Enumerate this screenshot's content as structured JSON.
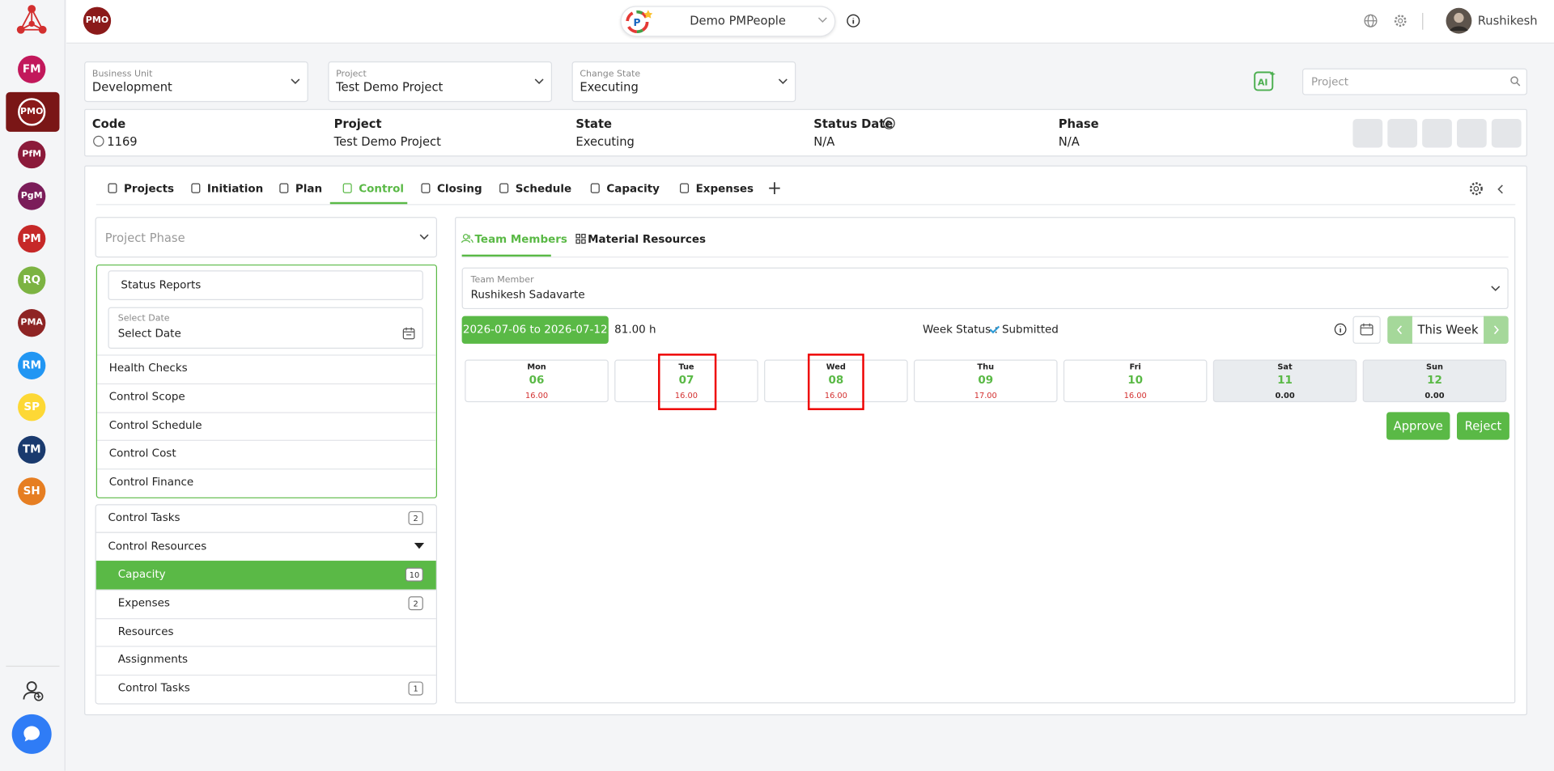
{
  "sidebar": {
    "items": [
      "FM",
      "PMO",
      "PfM",
      "PgM",
      "PM",
      "RQ",
      "PMA",
      "RM",
      "SP",
      "TM",
      "SH"
    ]
  },
  "header": {
    "app_badge": "PMO",
    "workspace": "Demo PMPeople",
    "user": "Rushikesh"
  },
  "filters": [
    {
      "label": "Business Unit",
      "value": "Development"
    },
    {
      "label": "Project",
      "value": "Test Demo Project"
    },
    {
      "label": "Change State",
      "value": "Executing"
    }
  ],
  "search_placeholder": "Project",
  "summary": [
    {
      "label": "Code",
      "value": "1169"
    },
    {
      "label": "Project",
      "value": "Test Demo Project"
    },
    {
      "label": "State",
      "value": "Executing"
    },
    {
      "label": "Status Date",
      "value": "N/A"
    },
    {
      "label": "Phase",
      "value": "N/A"
    }
  ],
  "tabs": {
    "items": [
      "Projects",
      "Initiation",
      "Plan",
      "Control",
      "Closing",
      "Schedule",
      "Capacity",
      "Expenses"
    ],
    "active": "Control"
  },
  "left_panel": {
    "phase_placeholder": "Project Phase",
    "status_reports": "Status Reports",
    "date_label": "Select Date",
    "date_value": "Select Date",
    "menu": [
      "Health Checks",
      "Control Scope",
      "Control Schedule",
      "Control Cost",
      "Control Finance"
    ],
    "control_tasks": {
      "label": "Control Tasks",
      "count": "2"
    },
    "control_resources": "Control Resources",
    "resources": [
      {
        "label": "Capacity",
        "count": "10"
      },
      {
        "label": "Expenses",
        "count": "2"
      },
      {
        "label": "Resources"
      },
      {
        "label": "Assignments"
      },
      {
        "label": "Control Tasks",
        "count": "1"
      }
    ],
    "active_resource": "Capacity"
  },
  "right_panel": {
    "subtabs": [
      "Team Members",
      "Material Resources"
    ],
    "member_label": "Team Member",
    "member_value": "Rushikesh Sadavarte",
    "week_range": "2026-07-06 to 2026-07-12",
    "total_hours": "81.00 h",
    "week_status_label": "Week Status :",
    "week_status": "Submitted",
    "this_week": "This Week",
    "days": [
      {
        "name": "Mon",
        "date": "06",
        "hours": "16.00"
      },
      {
        "name": "Tue",
        "date": "07",
        "hours": "16.00"
      },
      {
        "name": "Wed",
        "date": "08",
        "hours": "16.00"
      },
      {
        "name": "Thu",
        "date": "09",
        "hours": "17.00"
      },
      {
        "name": "Fri",
        "date": "10",
        "hours": "16.00"
      },
      {
        "name": "Sat",
        "date": "11",
        "hours": "0.00"
      },
      {
        "name": "Sun",
        "date": "12",
        "hours": "0.00"
      }
    ],
    "approve": "Approve",
    "reject": "Reject"
  }
}
